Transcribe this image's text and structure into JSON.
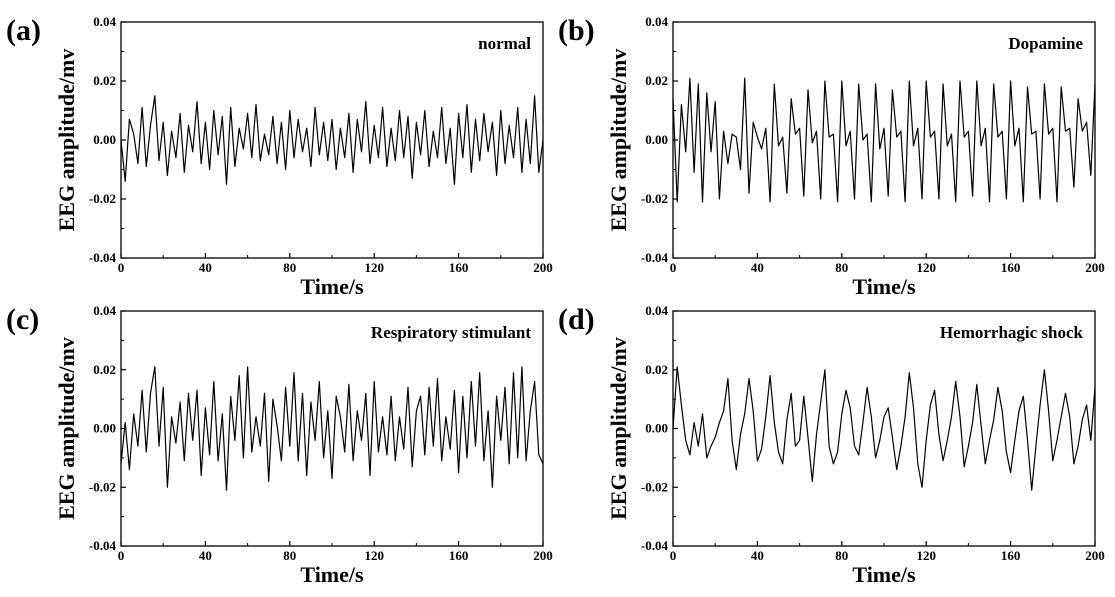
{
  "chart_data": [
    {
      "type": "line",
      "panel_label": "(a)",
      "annotation": "normal",
      "xlabel": "Time/s",
      "ylabel": "EEG amplitude/mv",
      "xlim": [
        0,
        200
      ],
      "ylim": [
        -0.04,
        0.04
      ],
      "xticks": [
        "0",
        "40",
        "80",
        "120",
        "160",
        "200"
      ],
      "yticks": [
        "-0.04",
        "-0.02",
        "0.00",
        "0.02",
        "0.04"
      ],
      "grid": false,
      "series": [
        {
          "x": [
            0,
            2,
            4,
            6,
            8,
            10,
            12,
            14,
            16,
            18,
            20,
            22,
            24,
            26,
            28,
            30,
            32,
            34,
            36,
            38,
            40,
            42,
            44,
            46,
            48,
            50,
            52,
            54,
            56,
            58,
            60,
            62,
            64,
            66,
            68,
            70,
            72,
            74,
            76,
            78,
            80,
            82,
            84,
            86,
            88,
            90,
            92,
            94,
            96,
            98,
            100,
            102,
            104,
            106,
            108,
            110,
            112,
            114,
            116,
            118,
            120,
            122,
            124,
            126,
            128,
            130,
            132,
            134,
            136,
            138,
            140,
            142,
            144,
            146,
            148,
            150,
            152,
            154,
            156,
            158,
            160,
            162,
            164,
            166,
            168,
            170,
            172,
            174,
            176,
            178,
            180,
            182,
            184,
            186,
            188,
            190,
            192,
            194,
            196,
            198,
            200
          ],
          "y": [
            0.0,
            -0.014,
            0.007,
            0.002,
            -0.008,
            0.011,
            -0.009,
            0.005,
            0.015,
            -0.007,
            0.006,
            -0.012,
            0.003,
            -0.006,
            0.009,
            -0.011,
            0.005,
            -0.004,
            0.013,
            -0.008,
            0.006,
            -0.01,
            0.01,
            -0.005,
            0.008,
            -0.015,
            0.011,
            -0.009,
            0.004,
            -0.003,
            0.009,
            -0.006,
            0.012,
            -0.007,
            0.002,
            -0.005,
            0.008,
            -0.008,
            0.006,
            -0.01,
            0.01,
            -0.006,
            0.007,
            -0.004,
            0.004,
            -0.009,
            0.011,
            -0.005,
            0.006,
            -0.007,
            0.007,
            -0.01,
            0.004,
            -0.006,
            0.009,
            -0.011,
            0.007,
            -0.004,
            0.013,
            -0.008,
            0.005,
            -0.006,
            0.011,
            -0.009,
            0.004,
            -0.007,
            0.01,
            -0.006,
            0.008,
            -0.013,
            0.006,
            -0.005,
            0.01,
            -0.009,
            0.003,
            -0.006,
            0.011,
            -0.008,
            0.004,
            -0.015,
            0.009,
            -0.006,
            0.012,
            -0.011,
            0.007,
            -0.007,
            0.009,
            -0.004,
            0.006,
            -0.012,
            0.01,
            -0.008,
            0.005,
            -0.006,
            0.011,
            -0.011,
            0.007,
            -0.008,
            0.015,
            -0.011,
            0.0
          ]
        }
      ]
    },
    {
      "type": "line",
      "panel_label": "(b)",
      "annotation": "Dopamine",
      "xlabel": "Time/s",
      "ylabel": "EEG amplitude/mv",
      "xlim": [
        0,
        200
      ],
      "ylim": [
        -0.04,
        0.04
      ],
      "xticks": [
        "0",
        "40",
        "80",
        "120",
        "160",
        "200"
      ],
      "yticks": [
        "-0.04",
        "-0.02",
        "0.00",
        "0.02",
        "0.04"
      ],
      "grid": false,
      "series": [
        {
          "x": [
            0,
            2,
            4,
            6,
            8,
            10,
            12,
            14,
            16,
            18,
            20,
            22,
            24,
            26,
            28,
            30,
            32,
            34,
            36,
            38,
            40,
            42,
            44,
            46,
            48,
            50,
            52,
            54,
            56,
            58,
            60,
            62,
            64,
            66,
            68,
            70,
            72,
            74,
            76,
            78,
            80,
            82,
            84,
            86,
            88,
            90,
            92,
            94,
            96,
            98,
            100,
            102,
            104,
            106,
            108,
            110,
            112,
            114,
            116,
            118,
            120,
            122,
            124,
            126,
            128,
            130,
            132,
            134,
            136,
            138,
            140,
            142,
            144,
            146,
            148,
            150,
            152,
            154,
            156,
            158,
            160,
            162,
            164,
            166,
            168,
            170,
            172,
            174,
            176,
            178,
            180,
            182,
            184,
            186,
            188,
            190,
            192,
            194,
            196,
            198,
            200
          ],
          "y": [
            0.014,
            -0.021,
            0.012,
            -0.004,
            0.021,
            -0.011,
            0.019,
            -0.021,
            0.016,
            -0.004,
            0.013,
            -0.02,
            0.003,
            -0.008,
            0.002,
            0.001,
            -0.01,
            0.021,
            -0.018,
            0.006,
            0.001,
            -0.003,
            0.004,
            -0.021,
            0.019,
            -0.002,
            0.001,
            -0.018,
            0.014,
            0.002,
            0.004,
            -0.019,
            0.017,
            -0.001,
            0.003,
            -0.02,
            0.02,
            0.001,
            0.002,
            -0.021,
            0.02,
            -0.002,
            0.003,
            -0.02,
            0.019,
            0.0,
            0.002,
            -0.021,
            0.019,
            -0.003,
            0.004,
            -0.019,
            0.017,
            0.001,
            0.003,
            -0.021,
            0.02,
            -0.002,
            0.004,
            -0.02,
            0.02,
            0.001,
            0.003,
            -0.02,
            0.019,
            -0.002,
            0.002,
            -0.021,
            0.02,
            0.001,
            0.003,
            -0.019,
            0.02,
            -0.002,
            0.004,
            -0.021,
            0.019,
            0.001,
            0.003,
            -0.02,
            0.02,
            -0.002,
            0.004,
            -0.021,
            0.018,
            0.002,
            0.003,
            -0.02,
            0.019,
            0.002,
            0.004,
            -0.021,
            0.018,
            0.003,
            0.004,
            -0.016,
            0.014,
            0.003,
            0.006,
            -0.012,
            0.019
          ]
        }
      ]
    },
    {
      "type": "line",
      "panel_label": "(c)",
      "annotation": "Respiratory stimulant",
      "xlabel": "Time/s",
      "ylabel": "EEG amplitude/mv",
      "xlim": [
        0,
        200
      ],
      "ylim": [
        -0.04,
        0.04
      ],
      "xticks": [
        "0",
        "40",
        "80",
        "120",
        "160",
        "200"
      ],
      "yticks": [
        "-0.04",
        "-0.02",
        "0.00",
        "0.02",
        "0.04"
      ],
      "grid": false,
      "series": [
        {
          "x": [
            0,
            2,
            4,
            6,
            8,
            10,
            12,
            14,
            16,
            18,
            20,
            22,
            24,
            26,
            28,
            30,
            32,
            34,
            36,
            38,
            40,
            42,
            44,
            46,
            48,
            50,
            52,
            54,
            56,
            58,
            60,
            62,
            64,
            66,
            68,
            70,
            72,
            74,
            76,
            78,
            80,
            82,
            84,
            86,
            88,
            90,
            92,
            94,
            96,
            98,
            100,
            102,
            104,
            106,
            108,
            110,
            112,
            114,
            116,
            118,
            120,
            122,
            124,
            126,
            128,
            130,
            132,
            134,
            136,
            138,
            140,
            142,
            144,
            146,
            148,
            150,
            152,
            154,
            156,
            158,
            160,
            162,
            164,
            166,
            168,
            170,
            172,
            174,
            176,
            178,
            180,
            182,
            184,
            186,
            188,
            190,
            192,
            194,
            196,
            198,
            200
          ],
          "y": [
            -0.012,
            0.002,
            -0.014,
            0.005,
            -0.006,
            0.013,
            -0.008,
            0.012,
            0.021,
            -0.006,
            0.014,
            -0.02,
            0.004,
            -0.005,
            0.009,
            -0.011,
            0.012,
            -0.004,
            0.013,
            -0.016,
            0.007,
            -0.009,
            0.016,
            -0.011,
            0.005,
            -0.021,
            0.011,
            -0.004,
            0.018,
            -0.01,
            0.021,
            -0.008,
            0.004,
            -0.006,
            0.012,
            -0.018,
            0.01,
            0.001,
            -0.011,
            0.014,
            -0.006,
            0.019,
            -0.011,
            0.012,
            -0.016,
            0.009,
            -0.004,
            0.016,
            -0.01,
            0.006,
            -0.017,
            0.011,
            0.004,
            -0.008,
            0.015,
            -0.011,
            0.006,
            -0.004,
            0.012,
            -0.016,
            0.016,
            -0.008,
            0.004,
            -0.009,
            0.011,
            -0.011,
            0.004,
            -0.007,
            0.014,
            -0.013,
            0.006,
            0.011,
            -0.009,
            0.014,
            -0.006,
            0.017,
            -0.011,
            0.004,
            -0.007,
            0.013,
            -0.015,
            0.011,
            -0.01,
            0.016,
            -0.006,
            0.019,
            -0.011,
            0.006,
            -0.02,
            0.011,
            -0.004,
            0.014,
            -0.012,
            0.019,
            -0.01,
            0.021,
            -0.011,
            0.006,
            0.016,
            -0.009,
            -0.012
          ]
        }
      ]
    },
    {
      "type": "line",
      "panel_label": "(d)",
      "annotation": "Hemorrhagic shock",
      "xlabel": "Time/s",
      "ylabel": "EEG amplitude/mv",
      "xlim": [
        0,
        200
      ],
      "ylim": [
        -0.04,
        0.04
      ],
      "xticks": [
        "0",
        "40",
        "80",
        "120",
        "160",
        "200"
      ],
      "yticks": [
        "-0.04",
        "-0.02",
        "0.00",
        "0.02",
        "0.04"
      ],
      "grid": false,
      "series": [
        {
          "x": [
            0,
            2,
            4,
            6,
            8,
            10,
            12,
            14,
            16,
            18,
            20,
            22,
            24,
            26,
            28,
            30,
            32,
            34,
            36,
            38,
            40,
            42,
            44,
            46,
            48,
            50,
            52,
            54,
            56,
            58,
            60,
            62,
            64,
            66,
            68,
            70,
            72,
            74,
            76,
            78,
            80,
            82,
            84,
            86,
            88,
            90,
            92,
            94,
            96,
            98,
            100,
            102,
            104,
            106,
            108,
            110,
            112,
            114,
            116,
            118,
            120,
            122,
            124,
            126,
            128,
            130,
            132,
            134,
            136,
            138,
            140,
            142,
            144,
            146,
            148,
            150,
            152,
            154,
            156,
            158,
            160,
            162,
            164,
            166,
            168,
            170,
            172,
            174,
            176,
            178,
            180,
            182,
            184,
            186,
            188,
            190,
            192,
            194,
            196,
            198,
            200
          ],
          "y": [
            0.0,
            0.021,
            0.008,
            -0.004,
            -0.009,
            0.002,
            -0.006,
            0.005,
            -0.01,
            -0.006,
            -0.003,
            0.002,
            0.006,
            0.017,
            -0.004,
            -0.014,
            -0.002,
            0.005,
            0.017,
            0.006,
            -0.011,
            -0.007,
            0.004,
            0.018,
            0.002,
            -0.008,
            -0.012,
            0.003,
            0.012,
            -0.006,
            -0.004,
            0.011,
            -0.003,
            -0.018,
            -0.002,
            0.009,
            0.02,
            -0.006,
            -0.012,
            -0.008,
            0.005,
            0.013,
            0.007,
            -0.006,
            -0.009,
            0.002,
            0.014,
            0.004,
            -0.01,
            -0.004,
            0.004,
            0.007,
            -0.003,
            -0.014,
            -0.006,
            0.004,
            0.019,
            0.007,
            -0.012,
            -0.02,
            -0.004,
            0.008,
            0.013,
            -0.002,
            -0.011,
            -0.004,
            0.004,
            0.016,
            0.004,
            -0.013,
            -0.006,
            0.002,
            0.015,
            0.001,
            -0.012,
            -0.004,
            0.003,
            0.014,
            0.006,
            -0.008,
            -0.015,
            -0.004,
            0.006,
            0.011,
            -0.004,
            -0.021,
            -0.006,
            0.008,
            0.02,
            0.006,
            -0.011,
            -0.004,
            0.004,
            0.012,
            0.004,
            -0.012,
            -0.006,
            0.003,
            0.008,
            -0.004,
            0.014
          ]
        }
      ]
    }
  ],
  "style": {
    "line_color": "#000000",
    "axis_color": "#000000",
    "background": "#ffffff"
  }
}
